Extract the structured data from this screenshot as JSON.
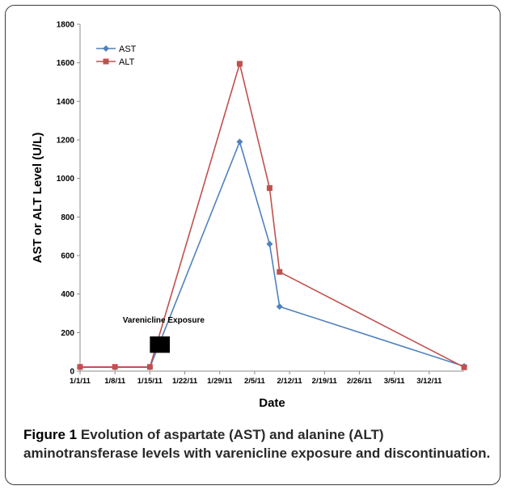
{
  "chart_data": {
    "type": "line",
    "xlabel": "Date",
    "ylabel": "AST or ALT Level (U/L)",
    "ylim": [
      0,
      1800
    ],
    "yticks": [
      0,
      200,
      400,
      600,
      800,
      1000,
      1200,
      1400,
      1600,
      1800
    ],
    "xlim": [
      "2011-01-01",
      "2011-03-19"
    ],
    "xtick_labels": [
      "1/1/11",
      "1/8/11",
      "1/15/11",
      "1/22/11",
      "1/29/11",
      "2/5/11",
      "2/12/11",
      "2/19/11",
      "2/26/11",
      "3/5/11",
      "3/12/11"
    ],
    "xtick_dates": [
      "2011-01-01",
      "2011-01-08",
      "2011-01-15",
      "2011-01-22",
      "2011-01-29",
      "2011-02-05",
      "2011-02-12",
      "2011-02-19",
      "2011-02-26",
      "2011-03-05",
      "2011-03-12"
    ],
    "grid": false,
    "legend_position": "top-left",
    "series": [
      {
        "name": "AST",
        "color": "#4f81bd",
        "marker": "diamond",
        "x": [
          "2011-01-01",
          "2011-01-08",
          "2011-01-15",
          "2011-02-02",
          "2011-02-08",
          "2011-02-10",
          "2011-03-19"
        ],
        "values": [
          20,
          20,
          20,
          1190,
          660,
          335,
          25
        ]
      },
      {
        "name": "ALT",
        "color": "#c0504d",
        "marker": "square",
        "x": [
          "2011-01-01",
          "2011-01-08",
          "2011-01-15",
          "2011-02-02",
          "2011-02-08",
          "2011-02-10",
          "2011-03-19"
        ],
        "values": [
          22,
          22,
          22,
          1595,
          950,
          515,
          20
        ]
      }
    ],
    "annotation": {
      "text": "Varenicline Exposure",
      "start": "2011-01-15",
      "end": "2011-01-19",
      "y_from": 95,
      "y_to": 180,
      "color": "#000000"
    }
  },
  "caption": {
    "label": "Figure 1",
    "text": "Evolution of aspartate (AST) and alanine (ALT) aminotransferase levels with varenicline exposure and discontinuation."
  }
}
